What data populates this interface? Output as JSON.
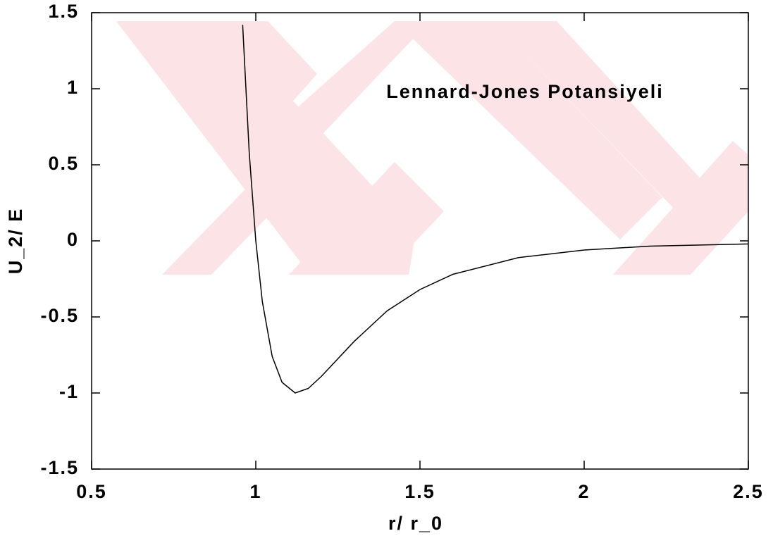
{
  "chart_data": {
    "type": "line",
    "annotation": "Lennard-Jones Potansiyeli",
    "xlabel": "r/ r_0",
    "ylabel": "U_2/ E",
    "x": [
      0.96,
      0.98,
      1.0,
      1.02,
      1.05,
      1.08,
      1.12,
      1.16,
      1.2,
      1.3,
      1.4,
      1.5,
      1.6,
      1.8,
      2.0,
      2.2,
      2.5
    ],
    "series": [
      {
        "color": "#000000",
        "values": [
          1.42,
          0.58,
          0,
          -0.4,
          -0.76,
          -0.93,
          -1.0,
          -0.97,
          -0.89,
          -0.66,
          -0.46,
          -0.32,
          -0.22,
          -0.11,
          -0.06,
          -0.035,
          -0.02
        ]
      }
    ],
    "xlim": [
      0.5,
      2.5
    ],
    "xticks": [
      0.5,
      1,
      1.5,
      2,
      2.5
    ],
    "ylim": [
      -1.5,
      1.5
    ],
    "yticks": [
      -1.5,
      -1,
      -0.5,
      0,
      0.5,
      1,
      1.5
    ]
  }
}
